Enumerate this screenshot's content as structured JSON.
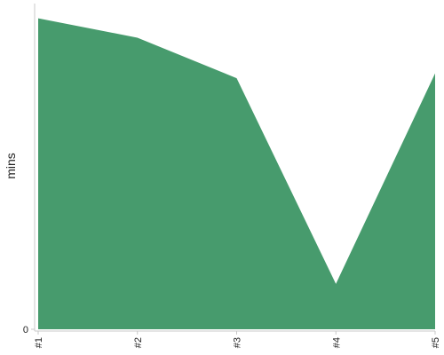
{
  "chart_data": {
    "type": "area",
    "categories": [
      "#1",
      "#2",
      "#3",
      "#4",
      "#5"
    ],
    "series": [
      {
        "values": [
          96,
          90,
          77.5,
          14,
          79
        ]
      }
    ],
    "xlabel": "",
    "ylabel": "mins",
    "ylim": [
      0,
      100
    ],
    "y_ticks": [
      0
    ],
    "grid": false,
    "legend": "none",
    "colors": {
      "area": "#479b6d",
      "axis": "#c8c8c8",
      "text": "#222222"
    }
  }
}
